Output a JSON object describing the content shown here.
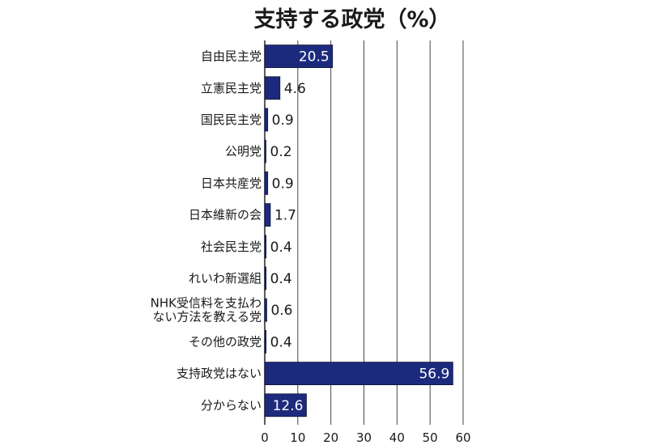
{
  "chart_data": {
    "type": "bar",
    "orientation": "horizontal",
    "title": "支持する政党（%）",
    "categories": [
      [
        "自由民主党"
      ],
      [
        "立憲民主党"
      ],
      [
        "国民民主党"
      ],
      [
        "公明党"
      ],
      [
        "日本共産党"
      ],
      [
        "日本維新の会"
      ],
      [
        "社会民主党"
      ],
      [
        "れいわ新選組"
      ],
      [
        "NHK受信料を支払わ",
        "ない方法を教える党"
      ],
      [
        "その他の政党"
      ],
      [
        "支持政党はない"
      ],
      [
        "分からない"
      ]
    ],
    "values": [
      20.5,
      4.6,
      0.9,
      0.2,
      0.9,
      1.7,
      0.4,
      0.4,
      0.6,
      0.4,
      56.9,
      12.6
    ],
    "value_labels": [
      "20.5",
      "4.6",
      "0.9",
      "0.2",
      "0.9",
      "1.7",
      "0.4",
      "0.4",
      "0.6",
      "0.4",
      "56.9",
      "12.6"
    ],
    "xlim": [
      0,
      60
    ],
    "xticks": [
      0,
      10,
      20,
      30,
      40,
      50,
      60
    ],
    "grid": "vertical",
    "colors": {
      "bar": "#1c2a7e",
      "bar_edge": "#0b1235",
      "text": "#1a1a1a",
      "grid": "#333333",
      "inside_label": "#ffffff"
    }
  }
}
